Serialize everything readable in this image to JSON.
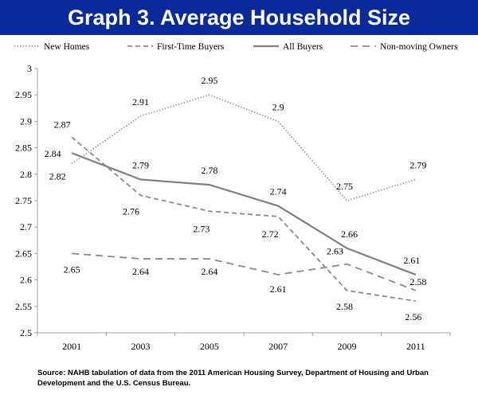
{
  "page": {
    "title": "Graph 3. Average Household Size",
    "source": "Source: NAHB tabulation of data from the 2011 American Housing Survey, Department of Housing and Urban Development and the U.S. Census Bureau."
  },
  "chart_data": {
    "type": "line",
    "title": "Graph 3. Average Household Size",
    "xlabel": "",
    "ylabel": "",
    "categories": [
      "2001",
      "2003",
      "2005",
      "2007",
      "2009",
      "2011"
    ],
    "ylim": [
      2.5,
      3
    ],
    "yticks": [
      "2.5",
      "2.55",
      "2.6",
      "2.65",
      "2.7",
      "2.75",
      "2.8",
      "2.85",
      "2.9",
      "2.95",
      "3"
    ],
    "grid": false,
    "legend": "top",
    "series": [
      {
        "name": "New Homes",
        "style": "dotted",
        "color": "#8a8a8a",
        "values": [
          2.82,
          2.91,
          2.95,
          2.9,
          2.75,
          2.79
        ],
        "labels": [
          "2.82",
          "2.91",
          "2.95",
          "2.9",
          "2.75",
          "2.79"
        ]
      },
      {
        "name": "First-Time Buyers",
        "style": "dashed",
        "color": "#8a8a8a",
        "values": [
          2.87,
          2.76,
          2.73,
          2.72,
          2.58,
          2.56
        ],
        "labels": [
          "2.87",
          "2.76",
          "2.73",
          "2.72",
          "2.58",
          "2.56"
        ]
      },
      {
        "name": "All Buyers",
        "style": "solid",
        "color": "#7f7f7f",
        "values": [
          2.84,
          2.79,
          2.78,
          2.74,
          2.66,
          2.61
        ],
        "labels": [
          "2.84",
          "2.79",
          "2.78",
          "2.74",
          "2.66",
          "2.61"
        ]
      },
      {
        "name": "Non-moving Owners",
        "style": "longdash",
        "color": "#8a8a8a",
        "values": [
          2.65,
          2.64,
          2.64,
          2.61,
          2.63,
          2.58
        ],
        "labels": [
          "2.65",
          "2.64",
          "2.64",
          "2.61",
          "2.63",
          "2.58"
        ]
      }
    ]
  }
}
